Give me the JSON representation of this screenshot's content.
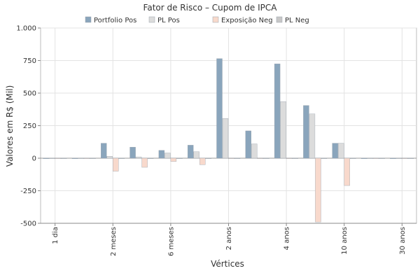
{
  "chart_data": {
    "type": "bar",
    "title": "Fator de Risco – Cupom de IPCA",
    "xlabel": "Vértices",
    "ylabel": "Valores em R$ (Mil)",
    "ylim": [
      -500,
      1000
    ],
    "yticks": [
      -500,
      -250,
      0,
      250,
      500,
      750,
      1000
    ],
    "ytick_labels": [
      "-500",
      "-250",
      "0",
      "250",
      "500",
      "750",
      "1.000"
    ],
    "categories": [
      "1 dia",
      "",
      "2 meses",
      "",
      "6 meses",
      "",
      "2 anos",
      "",
      "4 anos",
      "",
      "10 anos",
      "",
      "30 anos"
    ],
    "series": [
      {
        "name": "Portfolio Pos",
        "color": "#8aa5bc",
        "values": [
          0,
          0,
          115,
          85,
          60,
          100,
          765,
          210,
          725,
          405,
          115,
          0,
          0
        ]
      },
      {
        "name": "PL Pos",
        "color": "#dcdcdc",
        "values": [
          0,
          0,
          15,
          10,
          40,
          50,
          305,
          110,
          435,
          340,
          115,
          0,
          0
        ]
      },
      {
        "name": "Exposição Neg",
        "color": "#f8d9cc",
        "values": [
          0,
          0,
          -100,
          -70,
          -25,
          -50,
          0,
          0,
          0,
          -490,
          -210,
          0,
          0
        ]
      },
      {
        "name": "PL Neg",
        "color": "#c8c8c8",
        "values": [
          0,
          0,
          0,
          0,
          0,
          0,
          0,
          0,
          0,
          0,
          0,
          0,
          0
        ]
      }
    ],
    "grid": true,
    "legend_position": "top"
  }
}
